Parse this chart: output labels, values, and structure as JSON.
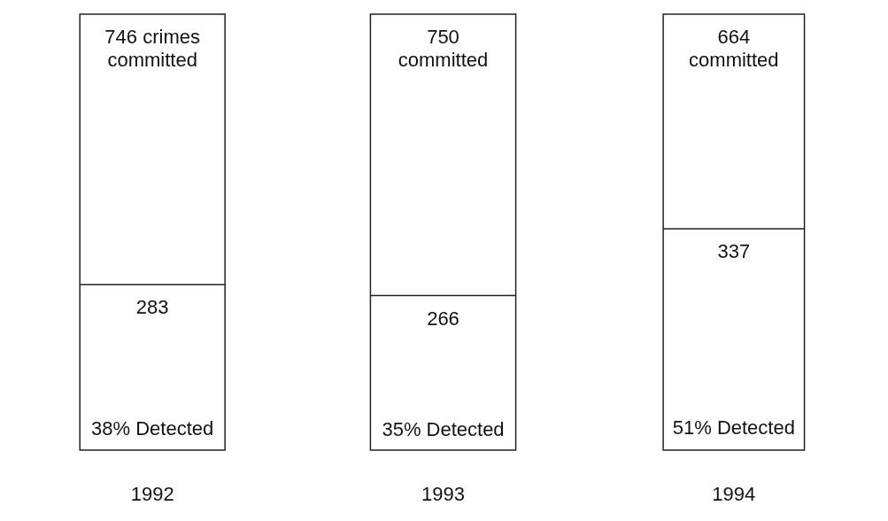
{
  "chart_data": {
    "type": "other",
    "categories": [
      "1992",
      "1993",
      "1994"
    ],
    "series": [
      {
        "values": [
          746,
          750,
          664
        ],
        "value_labels": [
          "746 crimes committed",
          "750 committed",
          "664 committed"
        ]
      },
      {
        "values": [
          283,
          266,
          337
        ],
        "value_labels": [
          "283",
          "266",
          "337"
        ]
      },
      {
        "values": [
          38,
          35,
          51
        ],
        "value_labels": [
          "38% Detected",
          "35% Detected",
          "51% Detected"
        ]
      }
    ]
  }
}
